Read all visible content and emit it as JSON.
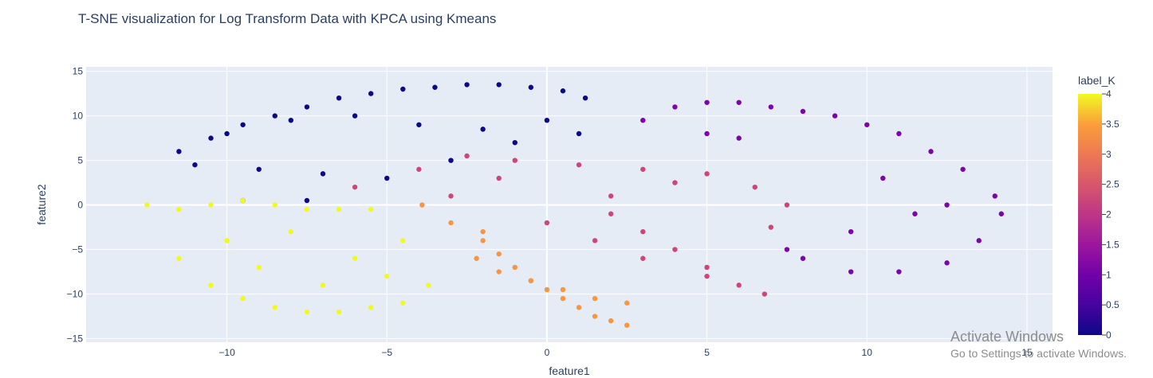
{
  "chart_data": {
    "type": "scatter",
    "title": "T-SNE visualization for Log Transform Data with KPCA using Kmeans",
    "xlabel": "feature1",
    "ylabel": "feature2",
    "xlim": [
      -14.4,
      15.8
    ],
    "ylim": [
      -15.4,
      15.5
    ],
    "xticks": [
      -10,
      -5,
      0,
      5,
      10,
      15
    ],
    "xtick_labels": [
      "−10",
      "−5",
      "0",
      "5",
      "10",
      "15"
    ],
    "yticks": [
      -15,
      -10,
      -5,
      0,
      5,
      10,
      15
    ],
    "ytick_labels": [
      "−15",
      "−10",
      "−5",
      "0",
      "5",
      "10",
      "15"
    ],
    "grid": true,
    "color_variable": "label_K",
    "colorbar": {
      "title": "label_K",
      "range": [
        0,
        4
      ],
      "ticks": [
        0,
        0.5,
        1,
        1.5,
        2,
        2.5,
        3,
        3.5,
        4
      ],
      "tick_labels": [
        "0",
        "0.5",
        "1",
        "1.5",
        "2",
        "2.5",
        "3",
        "3.5",
        "4"
      ]
    },
    "series": [
      {
        "label_K": 0,
        "color": "#0d0887",
        "x": [
          -11.5,
          -10.5,
          -9.5,
          -8.5,
          -7.5,
          -6.5,
          -5.5,
          -4.5,
          -3.5,
          -2.5,
          -1.5,
          -0.5,
          0.5,
          1.2,
          -11,
          -9,
          -7,
          -5,
          -3,
          -1,
          1,
          -10,
          -8,
          -6,
          -4,
          -2,
          0,
          -9.5,
          -7.5
        ],
        "y": [
          6.0,
          7.5,
          9.0,
          10.0,
          11.0,
          12.0,
          12.5,
          13.0,
          13.2,
          13.5,
          13.5,
          13.2,
          12.8,
          12.0,
          4.5,
          4.0,
          3.5,
          3.0,
          5.0,
          7.0,
          8.0,
          8.0,
          9.5,
          10.0,
          9.0,
          8.5,
          9.5,
          0.5,
          0.5
        ]
      },
      {
        "label_K": 1,
        "color": "#7e03a8",
        "x": [
          3.0,
          4.0,
          5.0,
          6.0,
          7.0,
          8.0,
          9.0,
          10.0,
          11.0,
          12.0,
          13.0,
          14.0,
          14.2,
          13.5,
          12.5,
          11.0,
          9.5,
          8.0,
          7.5,
          9.5,
          11.5,
          10.5,
          12.5,
          6.0,
          5.0
        ],
        "y": [
          9.5,
          11.0,
          11.5,
          11.5,
          11.0,
          10.5,
          10.0,
          9.0,
          8.0,
          6.0,
          4.0,
          1.0,
          -1.0,
          -4.0,
          -6.5,
          -7.5,
          -7.5,
          -6.0,
          -5.0,
          -3.0,
          -1.0,
          3.0,
          0.0,
          7.5,
          8.0
        ]
      },
      {
        "label_K": 2,
        "color": "#cc4778",
        "x": [
          -6.0,
          -4.0,
          -2.5,
          -1.0,
          1.0,
          3.0,
          5.0,
          6.5,
          7.5,
          7.0,
          2.0,
          3.0,
          4.0,
          5.0,
          6.0,
          6.8,
          5.0,
          3.0,
          1.5,
          0.0,
          -3.0,
          -1.5,
          4.0,
          2.0
        ],
        "y": [
          2.0,
          4.0,
          5.5,
          5.0,
          4.5,
          4.0,
          3.5,
          2.0,
          0.0,
          -2.5,
          -1.0,
          -3.0,
          -5.0,
          -7.0,
          -9.0,
          -10.0,
          -8.0,
          -6.0,
          -4.0,
          -2.0,
          1.0,
          3.0,
          2.5,
          1.0
        ]
      },
      {
        "label_K": 3,
        "color": "#f89540",
        "x": [
          -3.9,
          -3.0,
          -2.0,
          -1.5,
          -1.0,
          -0.5,
          0.0,
          0.5,
          1.0,
          1.5,
          2.0,
          2.5,
          2.5,
          1.5,
          0.5,
          -0.5,
          -1.5,
          -2.2,
          -2.0
        ],
        "y": [
          0.0,
          -2.0,
          -4.0,
          -5.5,
          -7.0,
          -8.5,
          -9.5,
          -10.5,
          -11.5,
          -12.5,
          -13.0,
          -13.5,
          -11.0,
          -10.5,
          -9.5,
          -8.5,
          -7.5,
          -6.0,
          -3.0
        ]
      },
      {
        "label_K": 4,
        "color": "#f0f921",
        "x": [
          -12.5,
          -11.5,
          -10.5,
          -9.5,
          -8.5,
          -7.5,
          -6.5,
          -5.5,
          -4.5,
          -3.7,
          -4.5,
          -5.5,
          -6.5,
          -7.5,
          -8.5,
          -9.5,
          -10.5,
          -11.5,
          -10.0,
          -8.0,
          -6.0,
          -5.0,
          -9.0,
          -7.0
        ],
        "y": [
          0.0,
          -0.5,
          0.0,
          0.5,
          0.0,
          -0.5,
          -0.5,
          -0.5,
          -4.0,
          -9.0,
          -11.0,
          -11.5,
          -12.0,
          -12.0,
          -11.5,
          -10.5,
          -9.0,
          -6.0,
          -4.0,
          -3.0,
          -6.0,
          -8.0,
          -7.0,
          -9.0
        ]
      }
    ]
  },
  "watermark": {
    "line1": "Activate Windows",
    "line2": "Go to Settings to activate Windows."
  }
}
